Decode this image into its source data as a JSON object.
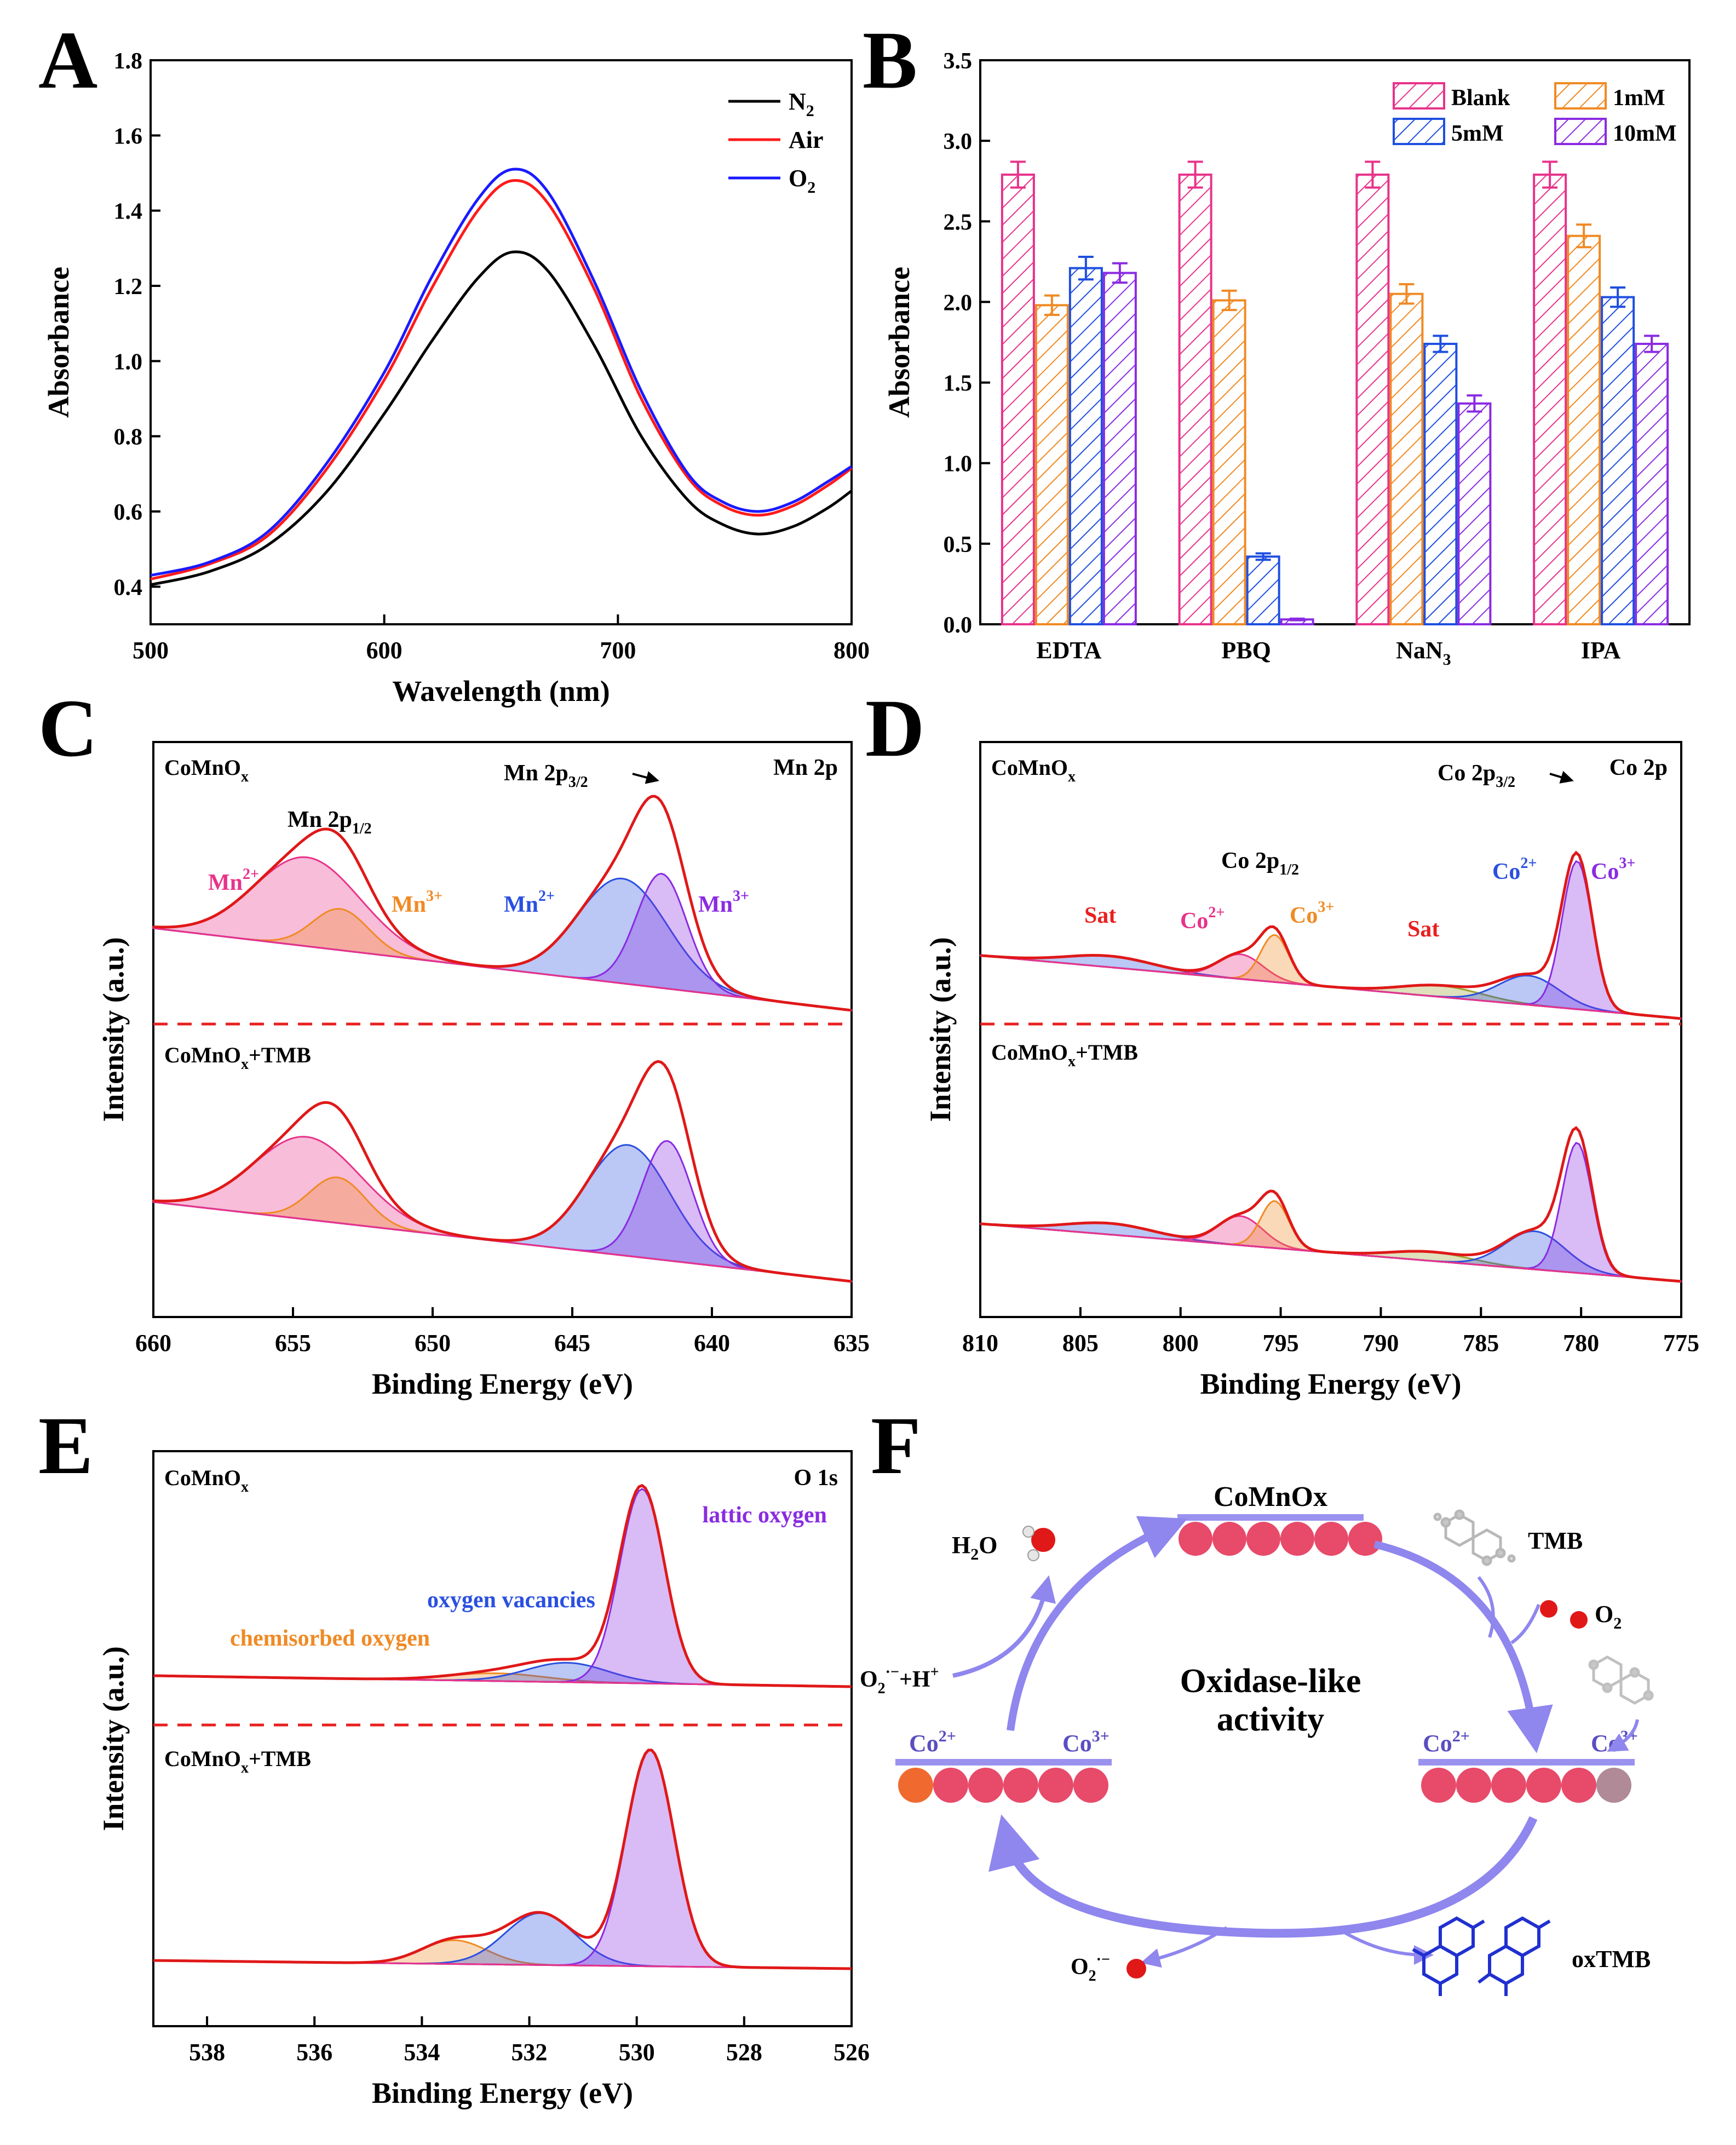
{
  "figure": {
    "panel_labels": [
      "A",
      "B",
      "C",
      "D",
      "E",
      "F"
    ]
  },
  "chart_data": [
    {
      "panel": "A",
      "type": "line",
      "xlabel": "Wavelength (nm)",
      "ylabel": "Absorbance",
      "xlim": [
        500,
        800
      ],
      "ylim": [
        0.3,
        1.8
      ],
      "xticks": [
        500,
        600,
        700,
        800
      ],
      "yticks": [
        0.4,
        0.6,
        0.8,
        1.0,
        1.2,
        1.4,
        1.6,
        1.8
      ],
      "x": [
        500,
        525,
        550,
        575,
        600,
        620,
        640,
        655,
        670,
        690,
        710,
        730,
        745,
        760,
        775,
        790,
        800
      ],
      "series": [
        {
          "name": "N",
          "sub": "2",
          "color": "#000000",
          "values": [
            0.405,
            0.44,
            0.51,
            0.65,
            0.86,
            1.05,
            1.22,
            1.29,
            1.24,
            1.04,
            0.8,
            0.63,
            0.565,
            0.54,
            0.56,
            0.61,
            0.655
          ]
        },
        {
          "name": "Air",
          "sub": "",
          "color": "#ff1a1a",
          "values": [
            0.42,
            0.46,
            0.535,
            0.71,
            0.95,
            1.19,
            1.4,
            1.48,
            1.42,
            1.19,
            0.9,
            0.69,
            0.615,
            0.59,
            0.615,
            0.67,
            0.715
          ]
        },
        {
          "name": "O",
          "sub": "2",
          "color": "#1a1aff",
          "values": [
            0.43,
            0.465,
            0.545,
            0.725,
            0.97,
            1.22,
            1.43,
            1.51,
            1.45,
            1.21,
            0.92,
            0.7,
            0.625,
            0.6,
            0.625,
            0.68,
            0.72
          ]
        }
      ]
    },
    {
      "panel": "B",
      "type": "bar",
      "ylabel": "Absorbance",
      "ylim": [
        0,
        3.5
      ],
      "yticks": [
        0.0,
        0.5,
        1.0,
        1.5,
        2.0,
        2.5,
        3.0,
        3.5
      ],
      "categories": [
        {
          "main": "EDTA",
          "sub": ""
        },
        {
          "main": "PBQ",
          "sub": ""
        },
        {
          "main": "NaN",
          "sub": "3"
        },
        {
          "main": "IPA",
          "sub": ""
        }
      ],
      "series": [
        {
          "name": "Blank",
          "color": "#e8338a",
          "values": [
            2.79,
            2.79,
            2.79,
            2.79
          ],
          "errors": [
            0.08,
            0.08,
            0.08,
            0.08
          ]
        },
        {
          "name": "1mM",
          "color": "#f08a24",
          "values": [
            1.98,
            2.01,
            2.05,
            2.41
          ],
          "errors": [
            0.06,
            0.06,
            0.06,
            0.07
          ]
        },
        {
          "name": "5mM",
          "color": "#1f4fe0",
          "values": [
            2.21,
            0.42,
            1.74,
            2.03
          ],
          "errors": [
            0.07,
            0.02,
            0.05,
            0.06
          ]
        },
        {
          "name": "10mM",
          "color": "#8a2be2",
          "values": [
            2.18,
            0.03,
            1.37,
            1.74
          ],
          "errors": [
            0.06,
            0.005,
            0.05,
            0.05
          ]
        }
      ]
    },
    {
      "panel": "C",
      "type": "line",
      "xlabel": "Binding Energy (eV)",
      "ylabel": "Intensity (a.u.)",
      "xlim": [
        660,
        635
      ],
      "xticks": [
        660,
        655,
        650,
        645,
        640,
        635
      ],
      "top": {
        "sample": {
          "main": "CoMnO",
          "sub": "x",
          "rest": ""
        },
        "region": "Mn 2p",
        "peaks": [
          {
            "center": 654.5,
            "height": 0.28,
            "width": 1.9,
            "color": "#e8338a"
          },
          {
            "center": 653.3,
            "height": 0.13,
            "width": 1.0,
            "color": "#f08a24"
          },
          {
            "center": 643.2,
            "height": 0.33,
            "width": 1.6,
            "color": "#2a50e0"
          },
          {
            "center": 641.8,
            "height": 0.36,
            "width": 0.9,
            "color": "#8a2be2"
          }
        ],
        "labels": [
          {
            "main": "Mn 2p",
            "sub": "1/2",
            "sup": "",
            "color": "#000000"
          },
          {
            "main": "Mn 2p",
            "sub": "3/2",
            "sup": "",
            "color": "#000000"
          },
          {
            "main": "Mn",
            "sub": "",
            "sup": "2+",
            "color": "#e8338a"
          },
          {
            "main": "Mn",
            "sub": "",
            "sup": "3+",
            "color": "#f08a24"
          },
          {
            "main": "Mn",
            "sub": "",
            "sup": "2+",
            "color": "#2a50e0"
          },
          {
            "main": "Mn",
            "sub": "",
            "sup": "3+",
            "color": "#8a2be2"
          }
        ]
      },
      "bottom": {
        "sample": {
          "main": "CoMnO",
          "sub": "x",
          "rest": "+TMB"
        },
        "peaks": [
          {
            "center": 654.5,
            "height": 0.29,
            "width": 1.9,
            "color": "#e8338a"
          },
          {
            "center": 653.4,
            "height": 0.16,
            "width": 1.0,
            "color": "#f08a24"
          },
          {
            "center": 643.0,
            "height": 0.39,
            "width": 1.5,
            "color": "#2a50e0"
          },
          {
            "center": 641.6,
            "height": 0.42,
            "width": 0.9,
            "color": "#8a2be2"
          }
        ]
      }
    },
    {
      "panel": "D",
      "type": "line",
      "xlabel": "Binding Energy (eV)",
      "ylabel": "Intensity (a.u.)",
      "xlim": [
        810,
        775
      ],
      "xticks": [
        810,
        805,
        800,
        795,
        790,
        785,
        780,
        775
      ],
      "top": {
        "sample": {
          "main": "CoMnO",
          "sub": "x",
          "rest": ""
        },
        "region": "Co 2p",
        "peaks": [
          {
            "center": 803.5,
            "height": 0.05,
            "width": 2.2,
            "color": "#2a50e0"
          },
          {
            "center": 797.0,
            "height": 0.11,
            "width": 1.1,
            "color": "#e8338a"
          },
          {
            "center": 795.3,
            "height": 0.21,
            "width": 0.7,
            "color": "#f08a24"
          },
          {
            "center": 787.0,
            "height": 0.05,
            "width": 2.0,
            "color": "#9aa030"
          },
          {
            "center": 782.6,
            "height": 0.13,
            "width": 1.5,
            "color": "#2a50e0"
          },
          {
            "center": 780.2,
            "height": 0.66,
            "width": 0.75,
            "color": "#8a2be2"
          }
        ],
        "labels": [
          {
            "main": "Sat",
            "sub": "",
            "sup": "",
            "color": "#e82020"
          },
          {
            "main": "Co",
            "sub": "",
            "sup": "2+",
            "color": "#e8338a"
          },
          {
            "main": "Co 2p",
            "sub": "1/2",
            "sup": "",
            "color": "#000000"
          },
          {
            "main": "Co",
            "sub": "",
            "sup": "3+",
            "color": "#f08a24"
          },
          {
            "main": "Sat",
            "sub": "",
            "sup": "",
            "color": "#e82020"
          },
          {
            "main": "Co",
            "sub": "",
            "sup": "2+",
            "color": "#2a50e0"
          },
          {
            "main": "Co 2p",
            "sub": "3/2",
            "sup": "",
            "color": "#000000"
          },
          {
            "main": "Co",
            "sub": "",
            "sup": "3+",
            "color": "#8a2be2"
          }
        ]
      },
      "bottom": {
        "sample": {
          "main": "CoMnO",
          "sub": "x",
          "rest": "+TMB"
        },
        "peaks": [
          {
            "center": 803.5,
            "height": 0.05,
            "width": 2.2,
            "color": "#2a50e0"
          },
          {
            "center": 797.0,
            "height": 0.13,
            "width": 1.1,
            "color": "#e8338a"
          },
          {
            "center": 795.3,
            "height": 0.21,
            "width": 0.7,
            "color": "#f08a24"
          },
          {
            "center": 787.5,
            "height": 0.04,
            "width": 2.0,
            "color": "#9aa030"
          },
          {
            "center": 782.3,
            "height": 0.17,
            "width": 1.5,
            "color": "#2a50e0"
          },
          {
            "center": 780.2,
            "height": 0.58,
            "width": 0.75,
            "color": "#8a2be2"
          }
        ]
      }
    },
    {
      "panel": "E",
      "type": "line",
      "xlabel": "Binding Energy (eV)",
      "ylabel": "Intensity (a.u.)",
      "xlim": [
        539,
        526
      ],
      "xticks": [
        538,
        536,
        534,
        532,
        530,
        528,
        526
      ],
      "top": {
        "sample": {
          "main": "CoMnO",
          "sub": "x",
          "rest": ""
        },
        "region": "O 1s",
        "peaks": [
          {
            "center": 532.6,
            "height": 0.04,
            "width": 0.9,
            "color": "#f08a24"
          },
          {
            "center": 531.3,
            "height": 0.1,
            "width": 0.75,
            "color": "#2a50e0"
          },
          {
            "center": 529.9,
            "height": 1.0,
            "width": 0.42,
            "color": "#8a2be2"
          }
        ],
        "labels": [
          {
            "main": "lattic oxygen",
            "sub": "",
            "sup": "",
            "color": "#8a2be2"
          },
          {
            "main": "oxygen vacancies",
            "sub": "",
            "sup": "",
            "color": "#2a50e0"
          },
          {
            "main": "chemisorbed oxygen",
            "sub": "",
            "sup": "",
            "color": "#f08a24"
          }
        ]
      },
      "bottom": {
        "sample": {
          "main": "CoMnO",
          "sub": "x",
          "rest": "+TMB"
        },
        "peaks": [
          {
            "center": 533.4,
            "height": 0.11,
            "width": 0.6,
            "color": "#f08a24"
          },
          {
            "center": 531.8,
            "height": 0.24,
            "width": 0.65,
            "color": "#2a50e0"
          },
          {
            "center": 529.75,
            "height": 1.0,
            "width": 0.45,
            "color": "#8a2be2"
          }
        ]
      }
    }
  ],
  "schematic": {
    "title": "CoMnOx",
    "center_text": [
      "Oxidase-like",
      "activity"
    ],
    "left": {
      "c2": "Co",
      "c2sup": "2+",
      "c3": "Co",
      "c3sup": "3+"
    },
    "right": {
      "c2": "Co",
      "c2sup": "2+",
      "c3": "Co",
      "c3sup": "3+"
    },
    "h2o": {
      "main": "H",
      "sub": "2",
      "rest": "O"
    },
    "superoxide_h": {
      "main": "O",
      "sub": "2",
      "sup": "·−",
      "rest": "+H",
      "sup2": "+"
    },
    "tmb": "TMB",
    "o2": {
      "main": "O",
      "sub": "2"
    },
    "superoxide": {
      "main": "O",
      "sub": "2",
      "sup": "·−"
    },
    "oxtmb": "oxTMB"
  }
}
